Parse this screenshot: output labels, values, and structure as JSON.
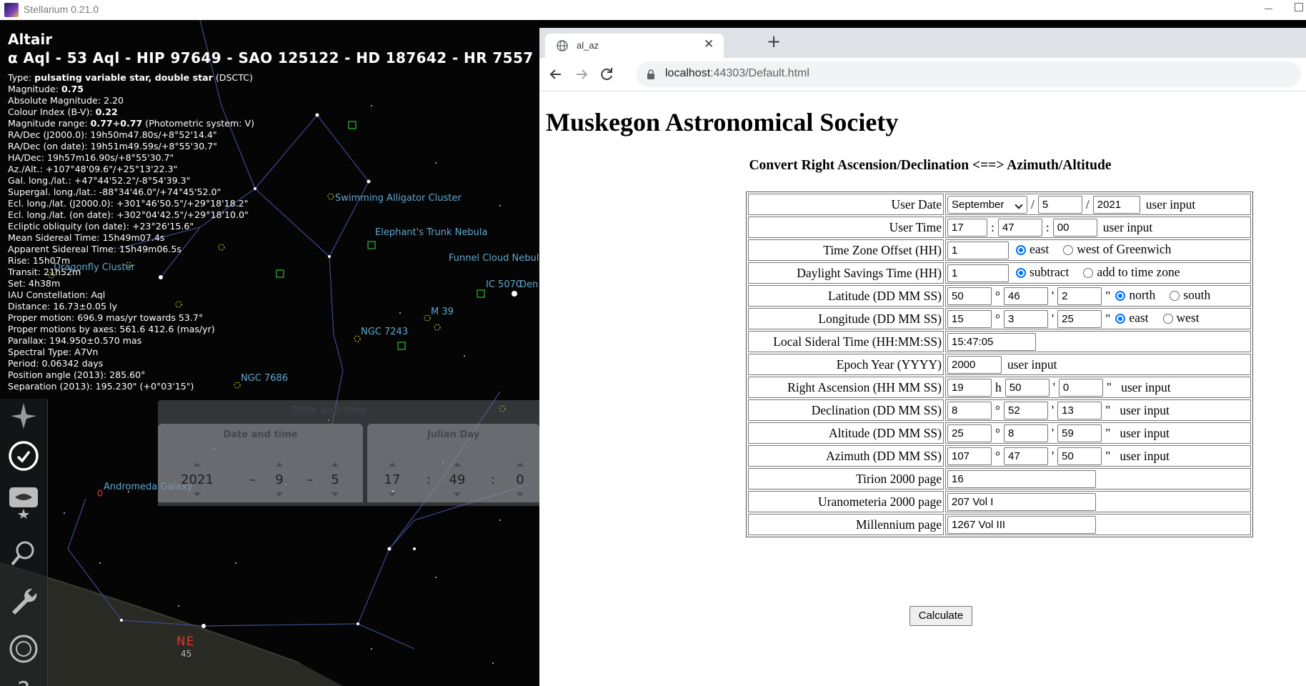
{
  "stellarium": {
    "window_title": "Stellarium 0.21.0",
    "object": {
      "name": "Altair",
      "ids": "α Aql - 53 Aql - HIP 97649 - SAO 125122 - HD 187642 - HR 7557",
      "lines": [
        [
          "Type: ",
          "pulsating variable star, double star",
          " (DSCTC)"
        ],
        [
          "Magnitude: ",
          "0.75",
          ""
        ],
        [
          "Absolute Magnitude: 2.20",
          "",
          ""
        ],
        [
          "Colour Index (B-V): ",
          "0.22",
          ""
        ],
        [
          "Magnitude range: ",
          "0.77÷0.77",
          " (Photometric system: V)"
        ],
        [
          "RA/Dec (J2000.0): 19h50m47.80s/+8°52'14.4\"",
          "",
          ""
        ],
        [
          "RA/Dec (on date): 19h51m49.59s/+8°55'30.7\"",
          "",
          ""
        ],
        [
          "HA/Dec: 19h57m16.90s/+8°55'30.7\"",
          "",
          ""
        ],
        [
          "Az./Alt.: +107°48'09.6\"/+25°13'22.3\"",
          "",
          ""
        ],
        [
          "Gal. long./lat.: +47°44'52.2\"/-8°54'39.3\"",
          "",
          ""
        ],
        [
          "Supergal. long./lat.: -88°34'46.0\"/+74°45'52.0\"",
          "",
          ""
        ],
        [
          "Ecl. long./lat. (J2000.0): +301°46'50.5\"/+29°18'18.2\"",
          "",
          ""
        ],
        [
          "Ecl. long./lat. (on date): +302°04'42.5\"/+29°18'10.0\"",
          "",
          ""
        ],
        [
          "Ecliptic obliquity (on date): +23°26'15.6\"",
          "",
          ""
        ],
        [
          "Mean Sidereal Time: 15h49m07.4s",
          "",
          ""
        ],
        [
          "Apparent Sidereal Time: 15h49m06.5s",
          "",
          ""
        ],
        [
          "Rise: 15h07m",
          "",
          ""
        ],
        [
          "Transit: 21h52m",
          "",
          ""
        ],
        [
          "Set: 4h38m",
          "",
          ""
        ],
        [
          "IAU Constellation: Aql",
          "",
          ""
        ],
        [
          "Distance: 16.73±0.05 ly",
          "",
          ""
        ],
        [
          "Proper motion: 696.9 mas/yr towards 53.7°",
          "",
          ""
        ],
        [
          "Proper motions by axes: 561.6 412.6 (mas/yr)",
          "",
          ""
        ],
        [
          "Parallax: 194.950±0.570 mas",
          "",
          ""
        ],
        [
          "Spectral Type: A7Vn",
          "",
          ""
        ],
        [
          "Period: 0.06342 days",
          "",
          ""
        ],
        [
          "Position angle (2013): 285.60°",
          "",
          ""
        ],
        [
          "Separation (2013): 195.230\" (+0°03'15\")",
          "",
          ""
        ]
      ]
    },
    "sky_labels": {
      "swimming_alligator": "Swimming Alligator Cluster",
      "elephants_trunk": "Elephant's Trunk Nebula",
      "funnel_cloud": "Funnel Cloud Nebul",
      "dragonfly": "Dragonfly Cluster",
      "ic5070": "IC 5070",
      "den": "Den",
      "m39": "M 39",
      "ngc7243": "NGC 7243",
      "ngc7686": "NGC 7686",
      "andromeda": "Andromeda Galaxy",
      "direction": "NE",
      "direction_deg": "45"
    },
    "datetime_widget": {
      "header": "Date and time",
      "date_header": "Date and time",
      "jd_header": "Julian Day",
      "year": "2021",
      "month": "9",
      "day": "5",
      "hour": "17",
      "minute": "49",
      "second": "0",
      "date_sep": "–",
      "time_sep": ":"
    }
  },
  "browser": {
    "tab_title": "al_az",
    "tab_close": "✕",
    "new_tab": "+",
    "url_host": "localhost",
    "url_rest": ":44303/Default.html"
  },
  "page": {
    "title": "Muskegon Astronomical Society",
    "subtitle": "Convert Right Ascension/Declination <==> Azimuth/Altitude",
    "user_input_note": "user input",
    "rows": {
      "user_date": {
        "label": "User Date",
        "month": "September",
        "day": "5",
        "year": "2021"
      },
      "user_time": {
        "label": "User Time",
        "hh": "17",
        "mm": "47",
        "ss": "00"
      },
      "tz": {
        "label": "Time Zone Offset (HH)",
        "value": "1",
        "opt1": "east",
        "opt2": "west of Greenwich"
      },
      "dst": {
        "label": "Daylight Savings Time (HH)",
        "value": "1",
        "opt1": "subtract",
        "opt2": "add to time zone"
      },
      "lat": {
        "label": "Latitude (DD MM SS)",
        "dd": "50",
        "mm": "46",
        "ss": "2",
        "opt1": "north",
        "opt2": "south"
      },
      "lon": {
        "label": "Longitude (DD MM SS)",
        "dd": "15",
        "mm": "3",
        "ss": "25",
        "opt1": "east",
        "opt2": "west"
      },
      "lst": {
        "label": "Local Sideral Time (HH:MM:SS)",
        "value": "15:47:05"
      },
      "epoch": {
        "label": "Epoch Year (YYYY)",
        "value": "2000"
      },
      "ra": {
        "label": "Right Ascension (HH MM SS)",
        "hh": "19",
        "mm": "50",
        "ss": "0",
        "h_mark": "h"
      },
      "dec": {
        "label": "Declination (DD MM SS)",
        "dd": "8",
        "mm": "52",
        "ss": "13"
      },
      "alt": {
        "label": "Altitude (DD MM SS)",
        "dd": "25",
        "mm": "8",
        "ss": "59"
      },
      "az": {
        "label": "Azimuth (DD MM SS)",
        "dd": "107",
        "mm": "47",
        "ss": "50"
      },
      "tirion": {
        "label": "Tirion 2000 page",
        "value": "16"
      },
      "urano": {
        "label": "Uranometeria 2000 page",
        "value": "207 Vol I"
      },
      "millennium": {
        "label": "Millennium page",
        "value": "1267 Vol III"
      }
    },
    "marks": {
      "slash": "/",
      "colon": ":",
      "deg": "°",
      "min": "'",
      "sec": "\""
    },
    "calculate_label": "Calculate"
  }
}
